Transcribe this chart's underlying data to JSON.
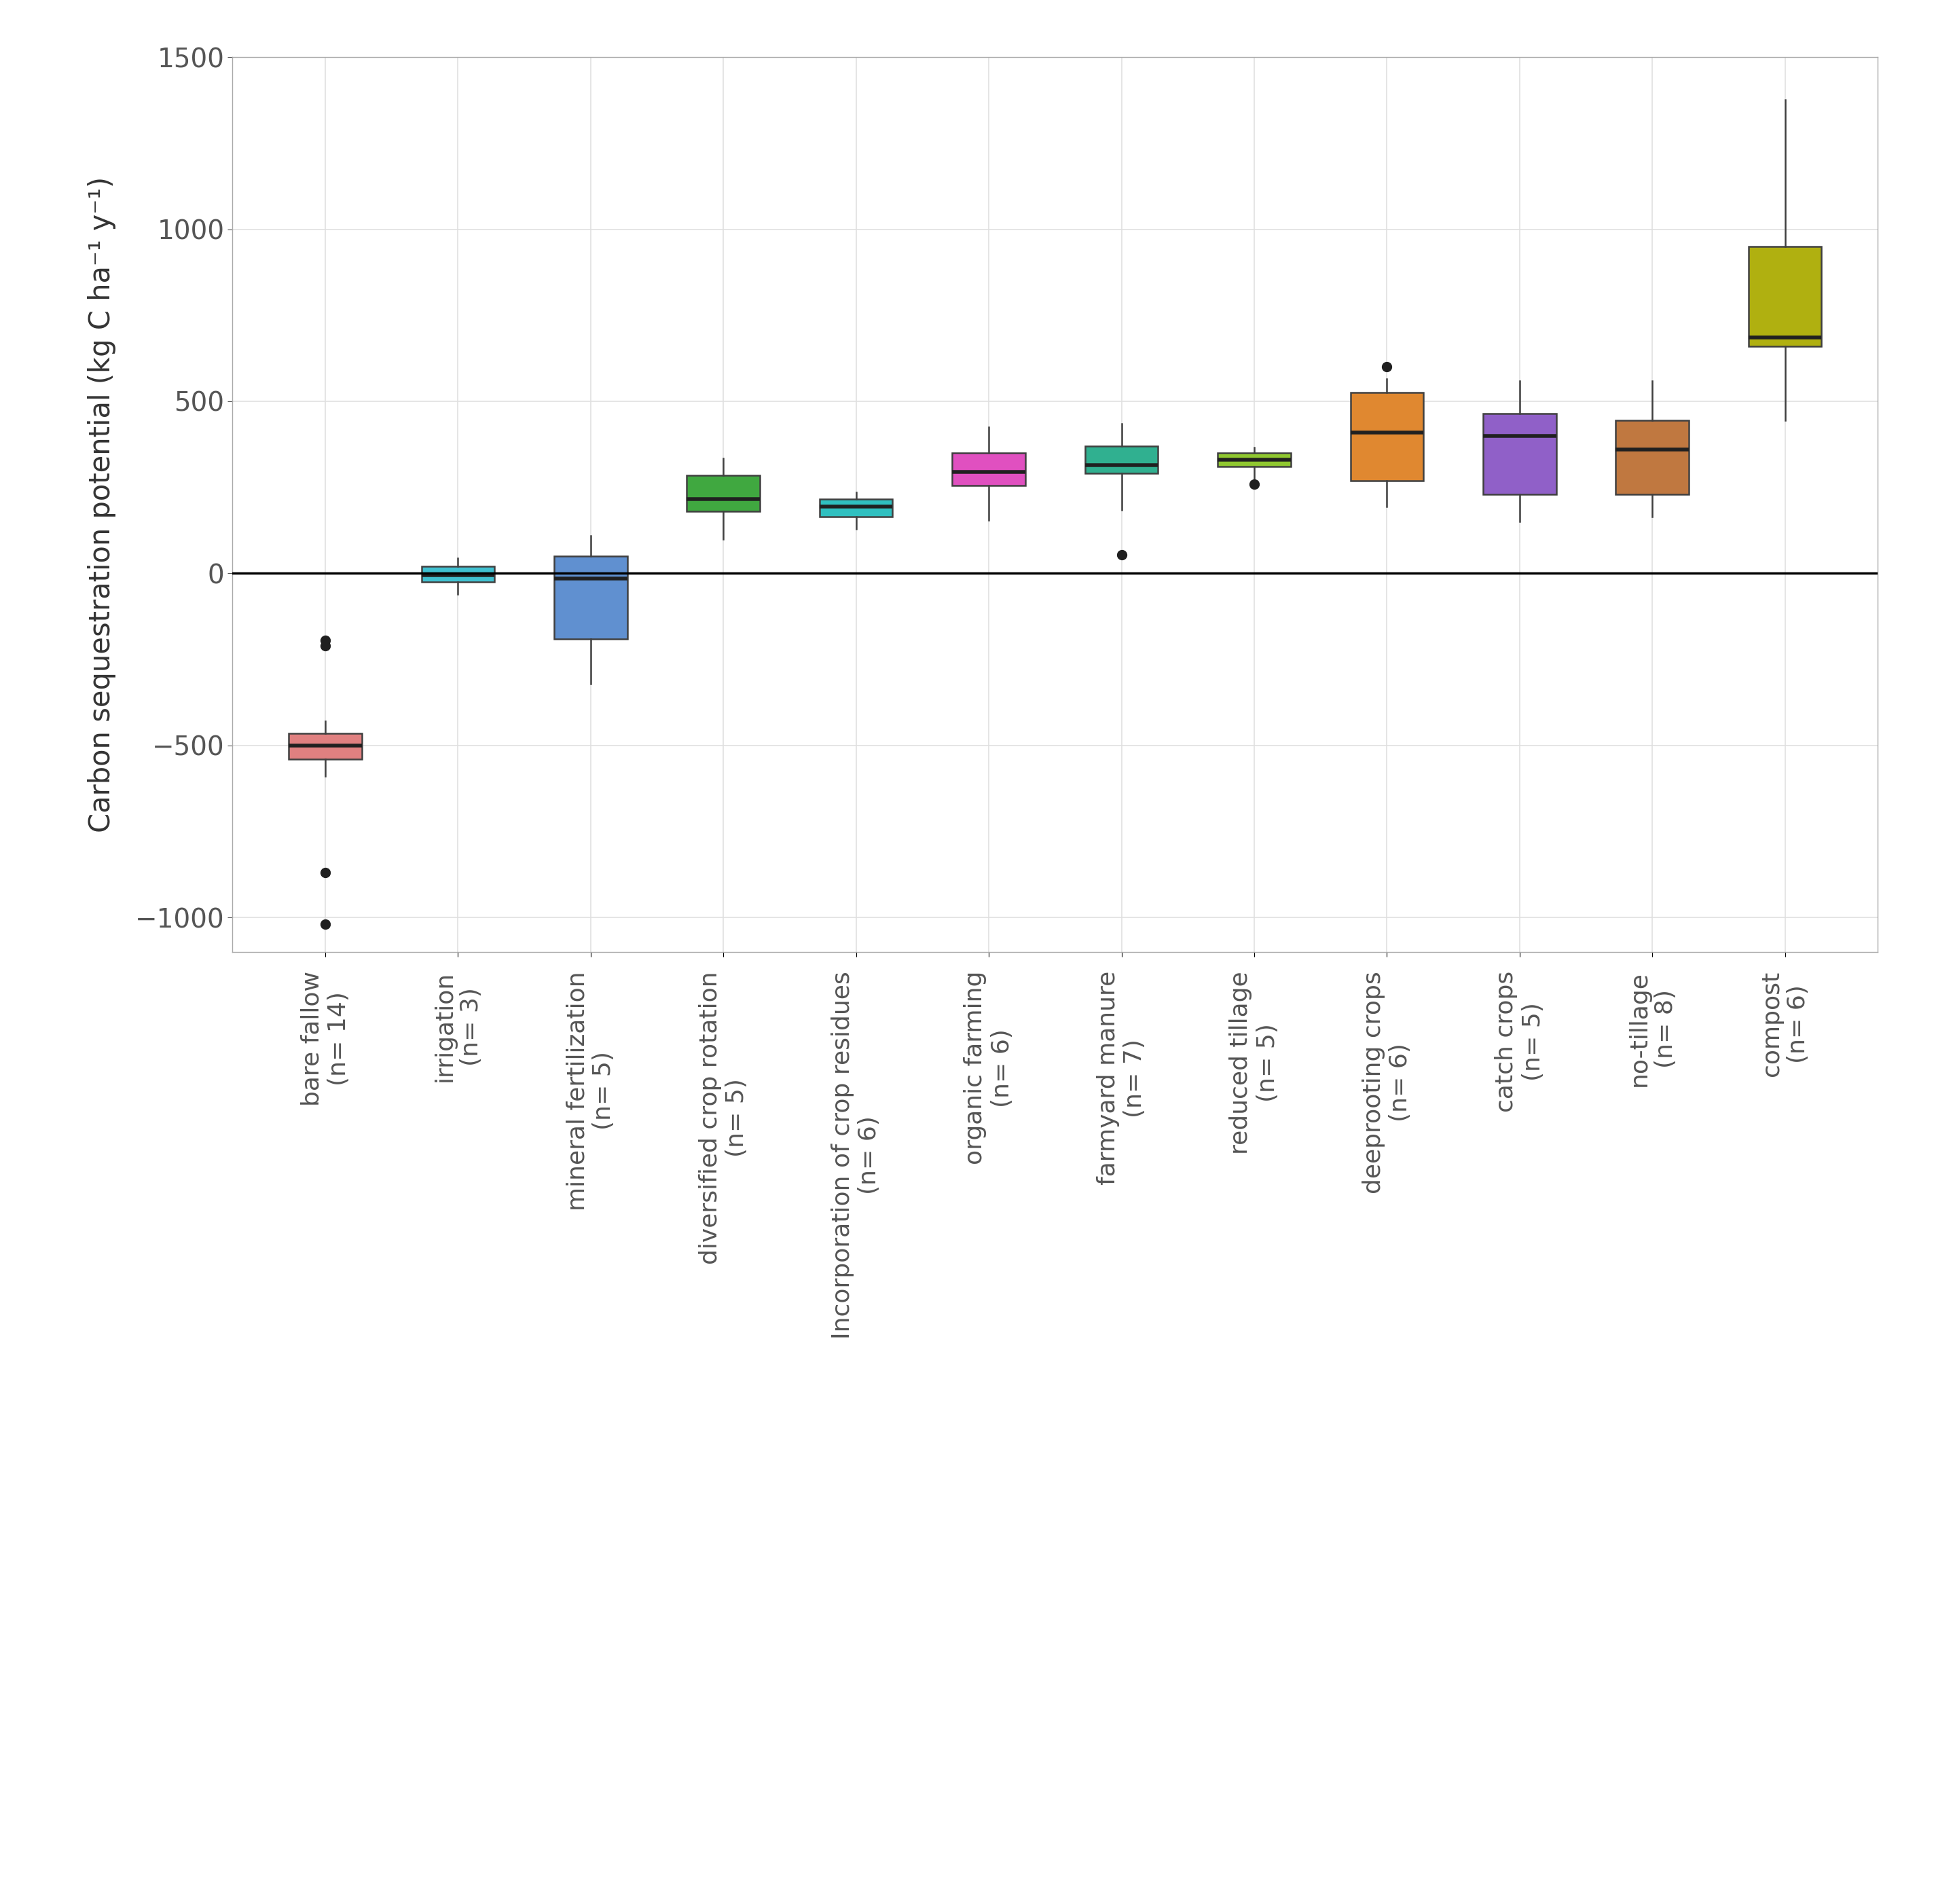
{
  "title": "",
  "ylabel": "Carbon sequestration potential (kg C ha⁻¹ y⁻¹)",
  "ylim": [
    -1100,
    1500
  ],
  "yticks": [
    -1000,
    -500,
    0,
    500,
    1000,
    1500
  ],
  "background_color": "#ffffff",
  "plot_bg_color": "#ffffff",
  "grid_color": "#e0e0e0",
  "categories": [
    "bare fallow\n(n= 14)",
    "irrigation\n(n= 3)",
    "mineral fertilization\n(n= 5)",
    "diversified crop rotation\n(n= 5)",
    "Incorporation of crop residues\n(n= 6)",
    "organic farming\n(n= 6)",
    "farmyard manure\n(n= 7)",
    "reduced tillage\n(n= 5)",
    "deeprooting crops\n(n= 6)",
    "catch crops\n(n= 5)",
    "no-tillage\n(n= 8)",
    "compost\n(n= 6)"
  ],
  "colors": [
    "#E08080",
    "#40C0D0",
    "#6090D0",
    "#40A840",
    "#30C0C0",
    "#E050C0",
    "#30B090",
    "#90C830",
    "#E08830",
    "#9060C8",
    "#C07840",
    "#B0B010"
  ],
  "box_data": [
    {
      "q1": -540,
      "median": -500,
      "q3": -465,
      "whislo": -590,
      "whishi": -430,
      "fliers": [
        -210,
        -195,
        -870,
        -1020
      ]
    },
    {
      "q1": -25,
      "median": -5,
      "q3": 20,
      "whislo": -60,
      "whishi": 45,
      "fliers": []
    },
    {
      "q1": -190,
      "median": -15,
      "q3": 50,
      "whislo": -320,
      "whishi": 110,
      "fliers": []
    },
    {
      "q1": 180,
      "median": 215,
      "q3": 285,
      "whislo": 100,
      "whishi": 335,
      "fliers": []
    },
    {
      "q1": 165,
      "median": 195,
      "q3": 215,
      "whislo": 130,
      "whishi": 235,
      "fliers": []
    },
    {
      "q1": 255,
      "median": 295,
      "q3": 350,
      "whislo": 155,
      "whishi": 425,
      "fliers": []
    },
    {
      "q1": 290,
      "median": 315,
      "q3": 370,
      "whislo": 185,
      "whishi": 435,
      "fliers": [
        55
      ]
    },
    {
      "q1": 310,
      "median": 330,
      "q3": 350,
      "whislo": 270,
      "whishi": 365,
      "fliers": [
        260
      ]
    },
    {
      "q1": 270,
      "median": 410,
      "q3": 525,
      "whislo": 195,
      "whishi": 565,
      "fliers": [
        600
      ]
    },
    {
      "q1": 230,
      "median": 400,
      "q3": 465,
      "whislo": 150,
      "whishi": 560,
      "fliers": []
    },
    {
      "q1": 230,
      "median": 360,
      "q3": 445,
      "whislo": 165,
      "whishi": 560,
      "fliers": []
    },
    {
      "q1": 660,
      "median": 685,
      "q3": 950,
      "whislo": 445,
      "whishi": 1375,
      "fliers": []
    }
  ],
  "zero_line": true,
  "box_width": 0.55,
  "linewidth": 1.8,
  "tick_label_fontsize": 26,
  "ylabel_fontsize": 30,
  "ytick_fontsize": 28
}
